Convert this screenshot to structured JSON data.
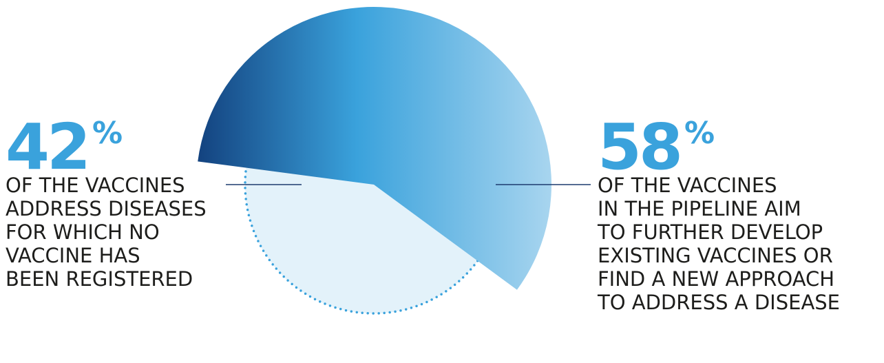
{
  "chart_data": {
    "type": "pie",
    "slices": [
      {
        "label": "58%",
        "value": 58,
        "color_start": "#13427f",
        "color_mid": "#3aa2dc",
        "color_end": "#a8d5ef"
      },
      {
        "label": "42%",
        "value": 42,
        "color": "#e3f2fa",
        "border": "dotted",
        "border_color": "#3aa2dc"
      }
    ],
    "colors": {
      "accent": "#3aa2dc",
      "text": "#1d1d1b",
      "leader": "#1d3b6e"
    }
  },
  "left_stat": {
    "value": "42",
    "unit": "%",
    "lines": [
      "OF THE VACCINES",
      "ADDRESS DISEASES",
      "FOR WHICH NO",
      "VACCINE HAS",
      "BEEN REGISTERED"
    ]
  },
  "right_stat": {
    "value": "58",
    "unit": "%",
    "lines": [
      "OF THE VACCINES",
      "IN THE PIPELINE AIM",
      "TO FURTHER DEVELOP",
      "EXISTING VACCINES OR",
      "FIND A NEW APPROACH",
      "TO ADDRESS A DISEASE"
    ]
  }
}
